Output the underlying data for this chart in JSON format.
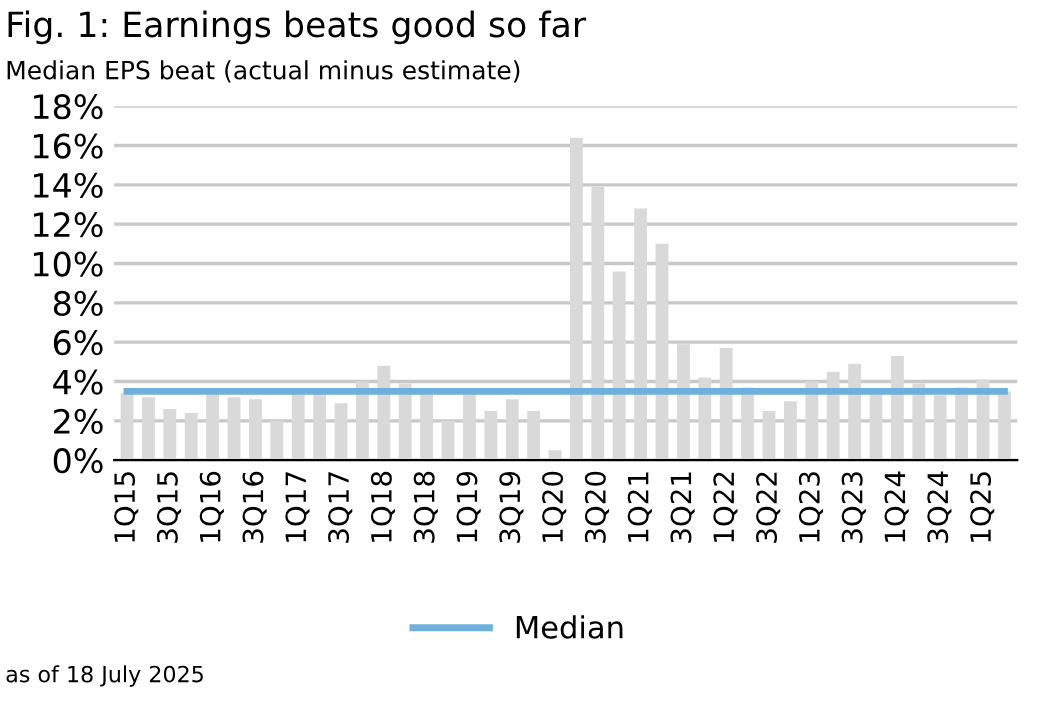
{
  "chart_data": {
    "type": "bar",
    "title": "Fig. 1: Earnings beats good so far",
    "subtitle": "Median EPS beat (actual minus estimate)",
    "categories": [
      "1Q15",
      null,
      "3Q15",
      null,
      "1Q16",
      null,
      "3Q16",
      null,
      "1Q17",
      null,
      "3Q17",
      null,
      "1Q18",
      null,
      "3Q18",
      null,
      "1Q19",
      null,
      "3Q19",
      null,
      "1Q20",
      null,
      "3Q20",
      null,
      "1Q21",
      null,
      "3Q21",
      null,
      "1Q22",
      null,
      "3Q22",
      null,
      "1Q23",
      null,
      "3Q23",
      null,
      "1Q24",
      null,
      "3Q24",
      null,
      "1Q25",
      null
    ],
    "series": [
      {
        "color": "#d9d9d9",
        "values": [
          3.4,
          3.2,
          2.6,
          2.4,
          3.5,
          3.2,
          3.1,
          2.0,
          3.5,
          3.5,
          2.9,
          4.0,
          4.8,
          3.9,
          3.4,
          2.0,
          3.5,
          2.5,
          3.1,
          2.5,
          0.5,
          16.4,
          13.9,
          9.6,
          12.8,
          11.0,
          5.9,
          4.2,
          5.7,
          3.7,
          2.5,
          3.0,
          4.0,
          4.5,
          4.9,
          3.4,
          5.3,
          3.9,
          3.3,
          3.7,
          4.1,
          3.5
        ]
      },
      {
        "type": "line",
        "name": "Median",
        "color": "#6fafdc",
        "values": [
          3.5,
          3.5,
          3.5,
          3.5,
          3.5,
          3.5,
          3.5,
          3.5,
          3.5,
          3.5,
          3.5,
          3.5,
          3.5,
          3.5,
          3.5,
          3.5,
          3.5,
          3.5,
          3.5,
          3.5,
          3.5,
          3.5,
          3.5,
          3.5,
          3.5,
          3.5,
          3.5,
          3.5,
          3.5,
          3.5,
          3.5,
          3.5,
          3.5,
          3.5,
          3.5,
          3.5,
          3.5,
          3.5,
          3.5,
          3.5,
          3.5,
          3.5
        ]
      }
    ],
    "ylim": [
      0,
      18
    ],
    "yticks": [
      {
        "value": 0,
        "label": "0%"
      },
      {
        "value": 2,
        "label": "2%"
      },
      {
        "value": 4,
        "label": "4%"
      },
      {
        "value": 6,
        "label": "6%"
      },
      {
        "value": 8,
        "label": "8%"
      },
      {
        "value": 10,
        "label": "10%"
      },
      {
        "value": 12,
        "label": "12%"
      },
      {
        "value": 14,
        "label": "14%"
      },
      {
        "value": 16,
        "label": "16%"
      },
      {
        "value": 18,
        "label": "18%"
      }
    ],
    "grid": "y",
    "legend": "bottom",
    "annotations": [
      "as of 18 July 2025"
    ]
  }
}
